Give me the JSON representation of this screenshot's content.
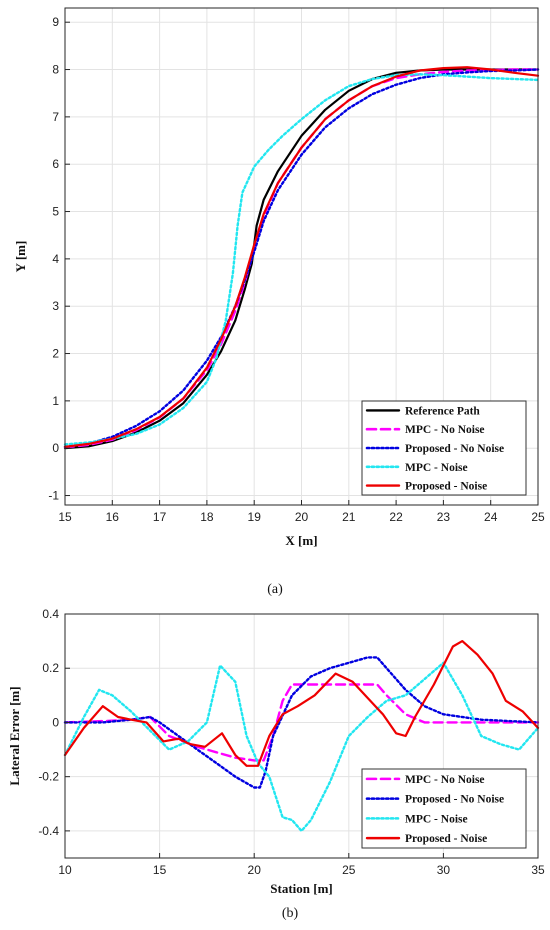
{
  "colors": {
    "reference": "#000000",
    "mpc_no_noise": "#ff00ff",
    "proposed_no_noise": "#0000e0",
    "mpc_noise": "#22e6f0",
    "proposed_noise": "#ee0000"
  },
  "chart_data": [
    {
      "type": "line",
      "caption": "(a)",
      "xlabel": "X [m]",
      "ylabel": "Y [m]",
      "xlim": [
        15,
        25
      ],
      "ylim": [
        -1.2,
        9.3
      ],
      "xticks": [
        15,
        16,
        17,
        18,
        19,
        20,
        21,
        22,
        23,
        24,
        25
      ],
      "yticks": [
        -1,
        0,
        1,
        2,
        3,
        4,
        5,
        6,
        7,
        8,
        9
      ],
      "grid": true,
      "legend_position": "bottom-right",
      "series": [
        {
          "name": "Reference Path",
          "style": "solid",
          "color": "#000000",
          "x": [
            15,
            15.5,
            16,
            16.5,
            17,
            17.5,
            18,
            18.3,
            18.6,
            18.8,
            18.95,
            19,
            19.05,
            19.2,
            19.5,
            20,
            20.5,
            21,
            21.5,
            22,
            22.5,
            23,
            23.5,
            24,
            24.5,
            25
          ],
          "y": [
            0,
            0.04,
            0.15,
            0.33,
            0.58,
            0.95,
            1.55,
            2.05,
            2.7,
            3.35,
            3.9,
            4.3,
            4.7,
            5.25,
            5.85,
            6.6,
            7.15,
            7.55,
            7.8,
            7.93,
            7.98,
            8,
            8,
            8,
            8,
            8
          ]
        },
        {
          "name": "MPC - No Noise",
          "style": "dashed",
          "color": "#ff00ff",
          "x": [
            15,
            15.5,
            16,
            16.5,
            17,
            17.5,
            18,
            18.3,
            18.6,
            18.8,
            19,
            19.2,
            19.5,
            20,
            20.5,
            21,
            21.5,
            22,
            22.5,
            23,
            23.5,
            24,
            24.5,
            25
          ],
          "y": [
            0.02,
            0.07,
            0.18,
            0.38,
            0.65,
            1.05,
            1.65,
            2.2,
            2.9,
            3.5,
            4.2,
            4.9,
            5.6,
            6.35,
            6.95,
            7.35,
            7.65,
            7.82,
            7.9,
            7.95,
            7.98,
            7.99,
            8,
            8
          ]
        },
        {
          "name": "Proposed - No Noise",
          "style": "dotted",
          "color": "#0000e0",
          "x": [
            15,
            15.5,
            16,
            16.5,
            17,
            17.5,
            18,
            18.3,
            18.6,
            18.8,
            19,
            19.2,
            19.5,
            20,
            20.5,
            21,
            21.5,
            22,
            22.5,
            23,
            23.5,
            24,
            24.5,
            25
          ],
          "y": [
            0.03,
            0.1,
            0.24,
            0.47,
            0.78,
            1.22,
            1.85,
            2.35,
            3.0,
            3.55,
            4.15,
            4.8,
            5.45,
            6.2,
            6.78,
            7.18,
            7.48,
            7.68,
            7.82,
            7.9,
            7.94,
            7.97,
            7.98,
            8
          ]
        },
        {
          "name": "MPC - Noise",
          "style": "dotted",
          "color": "#22e6f0",
          "x": [
            15,
            15.5,
            16,
            16.5,
            17,
            17.5,
            18,
            18.2,
            18.4,
            18.55,
            18.65,
            18.75,
            19,
            19.3,
            19.6,
            20,
            20.5,
            21,
            21.5,
            22,
            22.5,
            23,
            23.5,
            24,
            24.5,
            25
          ],
          "y": [
            0.08,
            0.12,
            0.2,
            0.3,
            0.5,
            0.85,
            1.4,
            1.9,
            2.7,
            3.7,
            4.7,
            5.4,
            5.95,
            6.3,
            6.6,
            6.95,
            7.35,
            7.65,
            7.8,
            7.88,
            7.9,
            7.88,
            7.85,
            7.82,
            7.8,
            7.78
          ]
        },
        {
          "name": "Proposed - Noise",
          "style": "solid",
          "color": "#ee0000",
          "x": [
            15,
            15.5,
            16,
            16.5,
            17,
            17.5,
            18,
            18.3,
            18.6,
            18.8,
            19,
            19.2,
            19.5,
            20,
            20.5,
            21,
            21.5,
            22,
            22.5,
            23,
            23.5,
            24,
            24.5,
            25
          ],
          "y": [
            0.03,
            0.09,
            0.2,
            0.4,
            0.66,
            1.05,
            1.7,
            2.3,
            3.0,
            3.6,
            4.3,
            4.95,
            5.6,
            6.35,
            6.95,
            7.35,
            7.65,
            7.85,
            7.98,
            8.03,
            8.05,
            8.0,
            7.93,
            7.87
          ]
        }
      ]
    },
    {
      "type": "line",
      "caption": "(b)",
      "xlabel": "Station [m]",
      "ylabel": "Lateral Error [m]",
      "xlim": [
        10,
        35
      ],
      "ylim": [
        -0.5,
        0.4
      ],
      "xticks": [
        10,
        15,
        20,
        25,
        30,
        35
      ],
      "yticks": [
        -0.4,
        -0.2,
        0,
        0.2,
        0.4
      ],
      "grid": true,
      "legend_position": "bottom-right",
      "series": [
        {
          "name": "MPC - No Noise",
          "style": "dashed",
          "color": "#ff00ff",
          "x": [
            10,
            12,
            13.5,
            14.5,
            15.5,
            17,
            18,
            19,
            20,
            20.5,
            21,
            21.5,
            22,
            23,
            24,
            25,
            26,
            26.5,
            27,
            28,
            29,
            30,
            31,
            33,
            35
          ],
          "y": [
            0,
            0.005,
            0.01,
            0.02,
            -0.05,
            -0.09,
            -0.11,
            -0.13,
            -0.14,
            -0.14,
            -0.05,
            0.08,
            0.14,
            0.14,
            0.14,
            0.14,
            0.14,
            0.14,
            0.1,
            0.03,
            0,
            0,
            0,
            0,
            0
          ]
        },
        {
          "name": "Proposed - No Noise",
          "style": "dotted",
          "color": "#0000e0",
          "x": [
            10,
            12,
            13.5,
            14.5,
            15,
            16,
            17,
            18,
            19,
            20,
            20.3,
            20.6,
            21,
            22,
            23,
            24,
            25,
            26,
            26.5,
            27,
            28,
            29,
            30,
            32,
            35
          ],
          "y": [
            0,
            0,
            0.01,
            0.02,
            0,
            -0.05,
            -0.1,
            -0.15,
            -0.2,
            -0.24,
            -0.24,
            -0.18,
            -0.05,
            0.1,
            0.17,
            0.2,
            0.22,
            0.24,
            0.24,
            0.2,
            0.12,
            0.06,
            0.03,
            0.01,
            0
          ]
        },
        {
          "name": "MPC - Noise",
          "style": "dotted",
          "color": "#22e6f0",
          "x": [
            10,
            11,
            11.8,
            12.5,
            13.5,
            14.5,
            15.5,
            16.5,
            17.5,
            18.2,
            19,
            19.6,
            20.2,
            20.8,
            21.5,
            22,
            22.5,
            23,
            24,
            25,
            26,
            27,
            28,
            29,
            30,
            31,
            32,
            33,
            34,
            35
          ],
          "y": [
            -0.12,
            0.02,
            0.12,
            0.1,
            0.04,
            -0.03,
            -0.1,
            -0.07,
            0,
            0.21,
            0.15,
            -0.05,
            -0.15,
            -0.2,
            -0.35,
            -0.36,
            -0.4,
            -0.36,
            -0.22,
            -0.05,
            0.02,
            0.08,
            0.1,
            0.16,
            0.22,
            0.1,
            -0.05,
            -0.08,
            -0.1,
            -0.02
          ]
        },
        {
          "name": "Proposed - Noise",
          "style": "solid",
          "color": "#ee0000",
          "x": [
            10,
            11,
            12,
            12.8,
            13.5,
            14.3,
            15.2,
            16,
            16.6,
            17.4,
            18.3,
            19,
            19.6,
            20.2,
            20.8,
            21.5,
            22.3,
            23.2,
            24.3,
            25.2,
            26,
            26.8,
            27.5,
            28,
            28.5,
            29.5,
            30.5,
            31,
            31.8,
            32.6,
            33.3,
            34.2,
            35
          ],
          "y": [
            -0.12,
            -0.02,
            0.06,
            0.02,
            0.01,
            0,
            -0.07,
            -0.06,
            -0.08,
            -0.09,
            -0.04,
            -0.12,
            -0.16,
            -0.16,
            -0.05,
            0.03,
            0.06,
            0.1,
            0.18,
            0.15,
            0.09,
            0.03,
            -0.04,
            -0.05,
            0.02,
            0.14,
            0.28,
            0.3,
            0.25,
            0.18,
            0.08,
            0.04,
            -0.02
          ]
        }
      ]
    }
  ]
}
